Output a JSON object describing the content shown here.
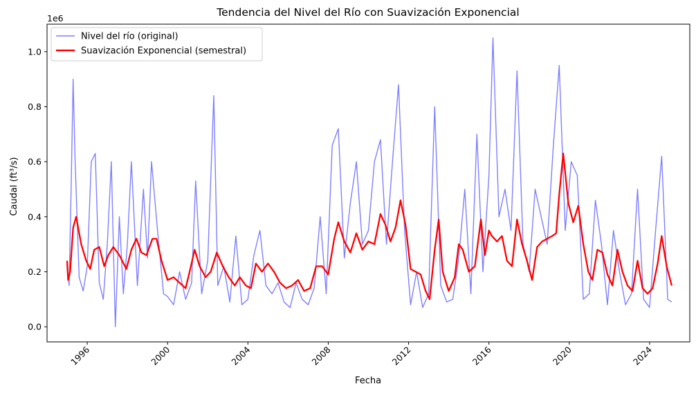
{
  "chart_data": {
    "type": "line",
    "title": "Tendencia del Nivel del Río con Suavización Exponencial",
    "xlabel": "Fecha",
    "ylabel": "Caudal (ft³/s)",
    "y_offset_label": "1e6",
    "xlim": [
      1994.0,
      2026.0
    ],
    "ylim": [
      -0.055,
      1.1
    ],
    "x_ticks": [
      1996,
      2000,
      2004,
      2008,
      2012,
      2016,
      2020,
      2024
    ],
    "x_tick_labels": [
      "1996",
      "2000",
      "2004",
      "2008",
      "2012",
      "2016",
      "2020",
      "2024"
    ],
    "y_ticks": [
      0.0,
      0.2,
      0.4,
      0.6,
      0.8,
      1.0
    ],
    "y_tick_labels": [
      "0.0",
      "0.2",
      "0.4",
      "0.6",
      "0.8",
      "1.0"
    ],
    "grid": false,
    "legend_position": "top-left",
    "series": [
      {
        "name": "Nivel del río (original)",
        "color": "#7f7fff",
        "x": [
          1995.0,
          1995.1,
          1995.2,
          1995.3,
          1995.4,
          1995.6,
          1995.8,
          1996.0,
          1996.2,
          1996.4,
          1996.6,
          1996.8,
          1997.0,
          1997.2,
          1997.4,
          1997.6,
          1997.8,
          1998.0,
          1998.2,
          1998.5,
          1998.8,
          1999.0,
          1999.2,
          1999.5,
          1999.8,
          2000.0,
          2000.3,
          2000.6,
          2000.9,
          2001.2,
          2001.4,
          2001.7,
          2002.0,
          2002.3,
          2002.5,
          2002.8,
          2003.1,
          2003.4,
          2003.7,
          2004.0,
          2004.3,
          2004.6,
          2004.9,
          2005.2,
          2005.5,
          2005.8,
          2006.1,
          2006.4,
          2006.7,
          2007.0,
          2007.3,
          2007.6,
          2007.9,
          2008.2,
          2008.5,
          2008.8,
          2009.1,
          2009.4,
          2009.7,
          2010.0,
          2010.3,
          2010.6,
          2010.9,
          2011.2,
          2011.5,
          2011.8,
          2012.1,
          2012.4,
          2012.7,
          2013.0,
          2013.3,
          2013.6,
          2013.9,
          2014.2,
          2014.5,
          2014.8,
          2015.1,
          2015.4,
          2015.7,
          2016.0,
          2016.2,
          2016.5,
          2016.8,
          2017.1,
          2017.4,
          2017.7,
          2018.0,
          2018.3,
          2018.6,
          2018.9,
          2019.2,
          2019.5,
          2019.8,
          2020.1,
          2020.4,
          2020.7,
          2021.0,
          2021.3,
          2021.6,
          2021.9,
          2022.2,
          2022.5,
          2022.8,
          2023.1,
          2023.4,
          2023.7,
          2024.0,
          2024.3,
          2024.6,
          2024.9,
          2025.1
        ],
        "values": [
          0.22,
          0.15,
          0.5,
          0.9,
          0.6,
          0.18,
          0.13,
          0.22,
          0.6,
          0.63,
          0.16,
          0.1,
          0.3,
          0.6,
          0.0,
          0.4,
          0.12,
          0.3,
          0.6,
          0.15,
          0.5,
          0.25,
          0.6,
          0.35,
          0.12,
          0.11,
          0.08,
          0.2,
          0.1,
          0.16,
          0.53,
          0.12,
          0.24,
          0.84,
          0.15,
          0.22,
          0.09,
          0.33,
          0.08,
          0.1,
          0.26,
          0.35,
          0.15,
          0.12,
          0.16,
          0.09,
          0.07,
          0.16,
          0.1,
          0.08,
          0.14,
          0.4,
          0.12,
          0.66,
          0.72,
          0.25,
          0.45,
          0.6,
          0.3,
          0.35,
          0.6,
          0.68,
          0.3,
          0.6,
          0.88,
          0.35,
          0.08,
          0.2,
          0.07,
          0.12,
          0.8,
          0.15,
          0.09,
          0.1,
          0.25,
          0.5,
          0.12,
          0.7,
          0.2,
          0.55,
          1.05,
          0.4,
          0.5,
          0.35,
          0.93,
          0.3,
          0.2,
          0.5,
          0.4,
          0.3,
          0.65,
          0.95,
          0.35,
          0.6,
          0.55,
          0.1,
          0.12,
          0.46,
          0.3,
          0.08,
          0.35,
          0.2,
          0.08,
          0.12,
          0.5,
          0.1,
          0.07,
          0.35,
          0.62,
          0.1,
          0.09
        ]
      },
      {
        "name": "Suavización Exponencial (semestral)",
        "color": "#ff0000",
        "x": [
          1995.0,
          1995.05,
          1995.15,
          1995.3,
          1995.45,
          1995.7,
          1995.95,
          1996.15,
          1996.35,
          1996.6,
          1996.85,
          1997.05,
          1997.3,
          1997.6,
          1997.95,
          1998.2,
          1998.45,
          1998.7,
          1998.95,
          1999.25,
          1999.45,
          1999.7,
          2000.0,
          2000.3,
          2000.6,
          2000.9,
          2001.1,
          2001.35,
          2001.6,
          2001.9,
          2002.15,
          2002.45,
          2002.75,
          2003.05,
          2003.35,
          2003.6,
          2003.9,
          2004.15,
          2004.4,
          2004.7,
          2005.0,
          2005.3,
          2005.6,
          2005.9,
          2006.2,
          2006.5,
          2006.8,
          2007.1,
          2007.4,
          2007.7,
          2008.0,
          2008.3,
          2008.5,
          2008.8,
          2009.1,
          2009.4,
          2009.7,
          2010.0,
          2010.3,
          2010.6,
          2010.85,
          2011.1,
          2011.35,
          2011.6,
          2011.85,
          2012.1,
          2012.35,
          2012.6,
          2012.85,
          2013.05,
          2013.3,
          2013.5,
          2013.7,
          2014.0,
          2014.3,
          2014.5,
          2014.7,
          2015.0,
          2015.3,
          2015.6,
          2015.8,
          2016.0,
          2016.15,
          2016.4,
          2016.65,
          2016.9,
          2017.15,
          2017.4,
          2017.65,
          2017.9,
          2018.15,
          2018.4,
          2018.65,
          2018.9,
          2019.15,
          2019.35,
          2019.5,
          2019.7,
          2019.95,
          2020.2,
          2020.45,
          2020.7,
          2020.95,
          2021.15,
          2021.4,
          2021.65,
          2021.9,
          2022.15,
          2022.4,
          2022.65,
          2022.9,
          2023.15,
          2023.4,
          2023.65,
          2023.9,
          2024.15,
          2024.4,
          2024.6,
          2024.85,
          2025.1
        ],
        "values": [
          0.24,
          0.17,
          0.2,
          0.36,
          0.4,
          0.3,
          0.24,
          0.21,
          0.28,
          0.29,
          0.22,
          0.26,
          0.29,
          0.26,
          0.21,
          0.28,
          0.32,
          0.27,
          0.26,
          0.32,
          0.32,
          0.24,
          0.17,
          0.18,
          0.16,
          0.14,
          0.2,
          0.28,
          0.22,
          0.18,
          0.2,
          0.27,
          0.22,
          0.18,
          0.15,
          0.18,
          0.15,
          0.14,
          0.23,
          0.2,
          0.23,
          0.2,
          0.16,
          0.14,
          0.15,
          0.17,
          0.13,
          0.14,
          0.22,
          0.22,
          0.19,
          0.32,
          0.38,
          0.31,
          0.27,
          0.34,
          0.28,
          0.31,
          0.3,
          0.41,
          0.37,
          0.31,
          0.36,
          0.46,
          0.37,
          0.21,
          0.2,
          0.19,
          0.13,
          0.1,
          0.28,
          0.39,
          0.2,
          0.13,
          0.18,
          0.3,
          0.28,
          0.2,
          0.22,
          0.39,
          0.26,
          0.35,
          0.33,
          0.31,
          0.33,
          0.24,
          0.22,
          0.39,
          0.3,
          0.24,
          0.17,
          0.29,
          0.31,
          0.32,
          0.33,
          0.34,
          0.48,
          0.63,
          0.45,
          0.38,
          0.44,
          0.3,
          0.2,
          0.17,
          0.28,
          0.27,
          0.19,
          0.15,
          0.28,
          0.2,
          0.15,
          0.13,
          0.24,
          0.14,
          0.12,
          0.14,
          0.23,
          0.33,
          0.22,
          0.15
        ]
      }
    ]
  }
}
